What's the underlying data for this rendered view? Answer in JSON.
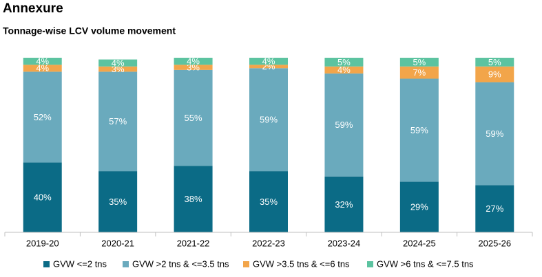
{
  "chart_data": {
    "type": "stacked-bar",
    "title": "Annexure",
    "subtitle": "Tonnage-wise LCV volume movement",
    "categories": [
      "2019-20",
      "2020-21",
      "2021-22",
      "2022-23",
      "2023-24",
      "2024-25",
      "2025-26"
    ],
    "ylim": [
      0,
      100
    ],
    "legend": "bottom",
    "series": [
      {
        "name": "GVW <=2 tns",
        "color": "#0b6b86",
        "values": [
          40,
          35,
          38,
          35,
          32,
          29,
          27
        ],
        "value_labels": [
          "40%",
          "35%",
          "38%",
          "35%",
          "32%",
          "29%",
          "27%"
        ]
      },
      {
        "name": "GVW >2 tns & <=3.5 tns",
        "color": "#6aaabd",
        "values": [
          52,
          57,
          55,
          59,
          59,
          59,
          59
        ],
        "value_labels": [
          "52%",
          "57%",
          "55%",
          "59%",
          "59%",
          "59%",
          "59%"
        ]
      },
      {
        "name": "GVW >3.5 tns & <=6 tns",
        "color": "#f2a54a",
        "values": [
          4,
          3,
          3,
          2,
          4,
          7,
          9
        ],
        "value_labels": [
          "4%",
          "3%",
          "3%",
          "2%",
          "4%",
          "7%",
          "9%"
        ]
      },
      {
        "name": "GVW >6 tns & <=7.5 tns",
        "color": "#5cc3a0",
        "values": [
          4,
          4,
          4,
          4,
          5,
          5,
          5
        ],
        "value_labels": [
          "4%",
          "4%",
          "4%",
          "4%",
          "5%",
          "5%",
          "5%"
        ]
      }
    ]
  }
}
